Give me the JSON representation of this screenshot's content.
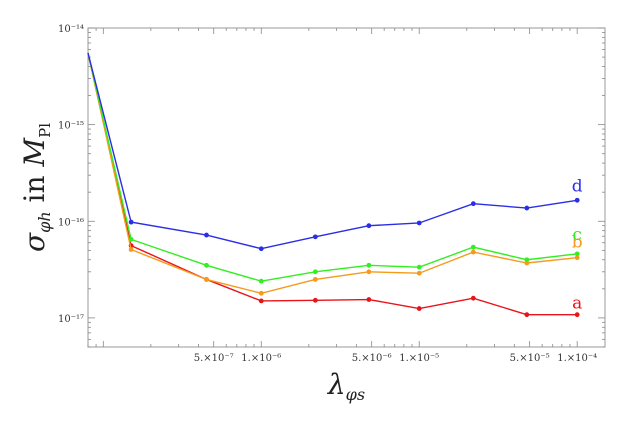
{
  "chart_data": {
    "type": "line",
    "title": "",
    "xlabel": "λ_φs",
    "ylabel": "σ_φh in M_Pl",
    "x_scale": "log",
    "y_scale": "log",
    "xlim": [
      8e-08,
      0.00015
    ],
    "ylim": [
      5e-18,
      1e-14
    ],
    "grid": false,
    "legend": "inline labels at right end of each series",
    "x_ticks": [
      {
        "value": 5e-07,
        "label": "5.×10⁻⁷"
      },
      {
        "value": 1e-06,
        "label": "1.×10⁻⁶"
      },
      {
        "value": 5e-06,
        "label": "5.×10⁻⁶"
      },
      {
        "value": 1e-05,
        "label": "1.×10⁻⁵"
      },
      {
        "value": 5e-05,
        "label": "5.×10⁻⁵"
      },
      {
        "value": 0.0001,
        "label": "1.×10⁻⁴"
      }
    ],
    "y_ticks": [
      {
        "value": 1e-14,
        "label": "10⁻¹⁴"
      },
      {
        "value": 1e-15,
        "label": "10⁻¹⁵"
      },
      {
        "value": 1e-16,
        "label": "10⁻¹⁶"
      },
      {
        "value": 1e-17,
        "label": "10⁻¹⁷"
      }
    ],
    "x": [
      8e-08,
      1.5e-07,
      4.5e-07,
      1e-06,
      2.2e-06,
      4.8e-06,
      1e-05,
      2.2e-05,
      4.8e-05,
      0.0001
    ],
    "series": [
      {
        "name": "a",
        "color": "#e8141a",
        "values": [
          5.5e-15,
          5.6e-17,
          2.5e-17,
          1.5e-17,
          1.52e-17,
          1.55e-17,
          1.25e-17,
          1.6e-17,
          1.08e-17,
          1.08e-17
        ]
      },
      {
        "name": "b",
        "color": "#f59a1c",
        "values": [
          5.5e-15,
          5.1e-17,
          2.5e-17,
          1.8e-17,
          2.5e-17,
          3e-17,
          2.9e-17,
          4.8e-17,
          3.7e-17,
          4.2e-17
        ]
      },
      {
        "name": "c",
        "color": "#33ee22",
        "values": [
          5.5e-15,
          6.5e-17,
          3.5e-17,
          2.4e-17,
          3e-17,
          3.5e-17,
          3.35e-17,
          5.4e-17,
          4e-17,
          4.6e-17
        ]
      },
      {
        "name": "d",
        "color": "#2a2ee6",
        "values": [
          5.5e-15,
          9.8e-17,
          7.2e-17,
          5.2e-17,
          6.9e-17,
          9e-17,
          9.6e-17,
          1.52e-16,
          1.37e-16,
          1.65e-16
        ]
      }
    ]
  }
}
